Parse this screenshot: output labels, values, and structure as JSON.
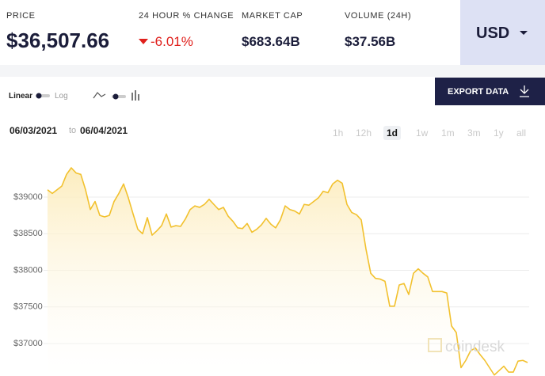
{
  "header": {
    "stats": [
      {
        "label": "PRICE",
        "value": "$36,507.66"
      },
      {
        "label": "24 HOUR % CHANGE",
        "value": "-6.01%"
      },
      {
        "label": "MARKET CAP",
        "value": "$683.64B"
      },
      {
        "label": "VOLUME (24H)",
        "value": "$37.56B"
      }
    ],
    "currency": "USD"
  },
  "toolbar": {
    "scales": [
      "Linear",
      "Log"
    ],
    "export": "EXPORT DATA"
  },
  "date_range": {
    "from": "06/03/2021",
    "separator": "to",
    "to": "06/04/2021"
  },
  "ranges": [
    "1h",
    "12h",
    "1d",
    "1w",
    "1m",
    "3m",
    "1y",
    "all"
  ],
  "active_range": "1d",
  "watermark": "coindesk",
  "chart_data": {
    "type": "area",
    "color": "#f2c12e",
    "grid": true,
    "ylim": [
      36550,
      39700
    ],
    "yticks": [
      {
        "value": 37000,
        "label": "$37000"
      },
      {
        "value": 37500,
        "label": "$37500"
      },
      {
        "value": 38000,
        "label": "$38000"
      },
      {
        "value": 38500,
        "label": "$38500"
      },
      {
        "value": 39000,
        "label": "$39000"
      }
    ],
    "values": [
      39100,
      39050,
      39100,
      39150,
      39310,
      39400,
      39330,
      39310,
      39100,
      38830,
      38940,
      38750,
      38730,
      38750,
      38940,
      39050,
      39180,
      38990,
      38770,
      38560,
      38500,
      38720,
      38480,
      38540,
      38610,
      38770,
      38590,
      38610,
      38600,
      38700,
      38830,
      38880,
      38860,
      38900,
      38970,
      38900,
      38830,
      38860,
      38740,
      38670,
      38580,
      38570,
      38640,
      38520,
      38560,
      38620,
      38710,
      38630,
      38580,
      38690,
      38880,
      38830,
      38810,
      38770,
      38900,
      38890,
      38940,
      38990,
      39080,
      39060,
      39180,
      39230,
      39190,
      38900,
      38790,
      38760,
      38690,
      38290,
      37960,
      37890,
      37880,
      37850,
      37510,
      37510,
      37800,
      37820,
      37670,
      37960,
      38020,
      37960,
      37910,
      37710,
      37710,
      37710,
      37690,
      37240,
      37150,
      36670,
      36770,
      36900,
      36940,
      36850,
      36770,
      36670,
      36570,
      36630,
      36690,
      36610,
      36610,
      36760,
      36770,
      36740
    ]
  }
}
